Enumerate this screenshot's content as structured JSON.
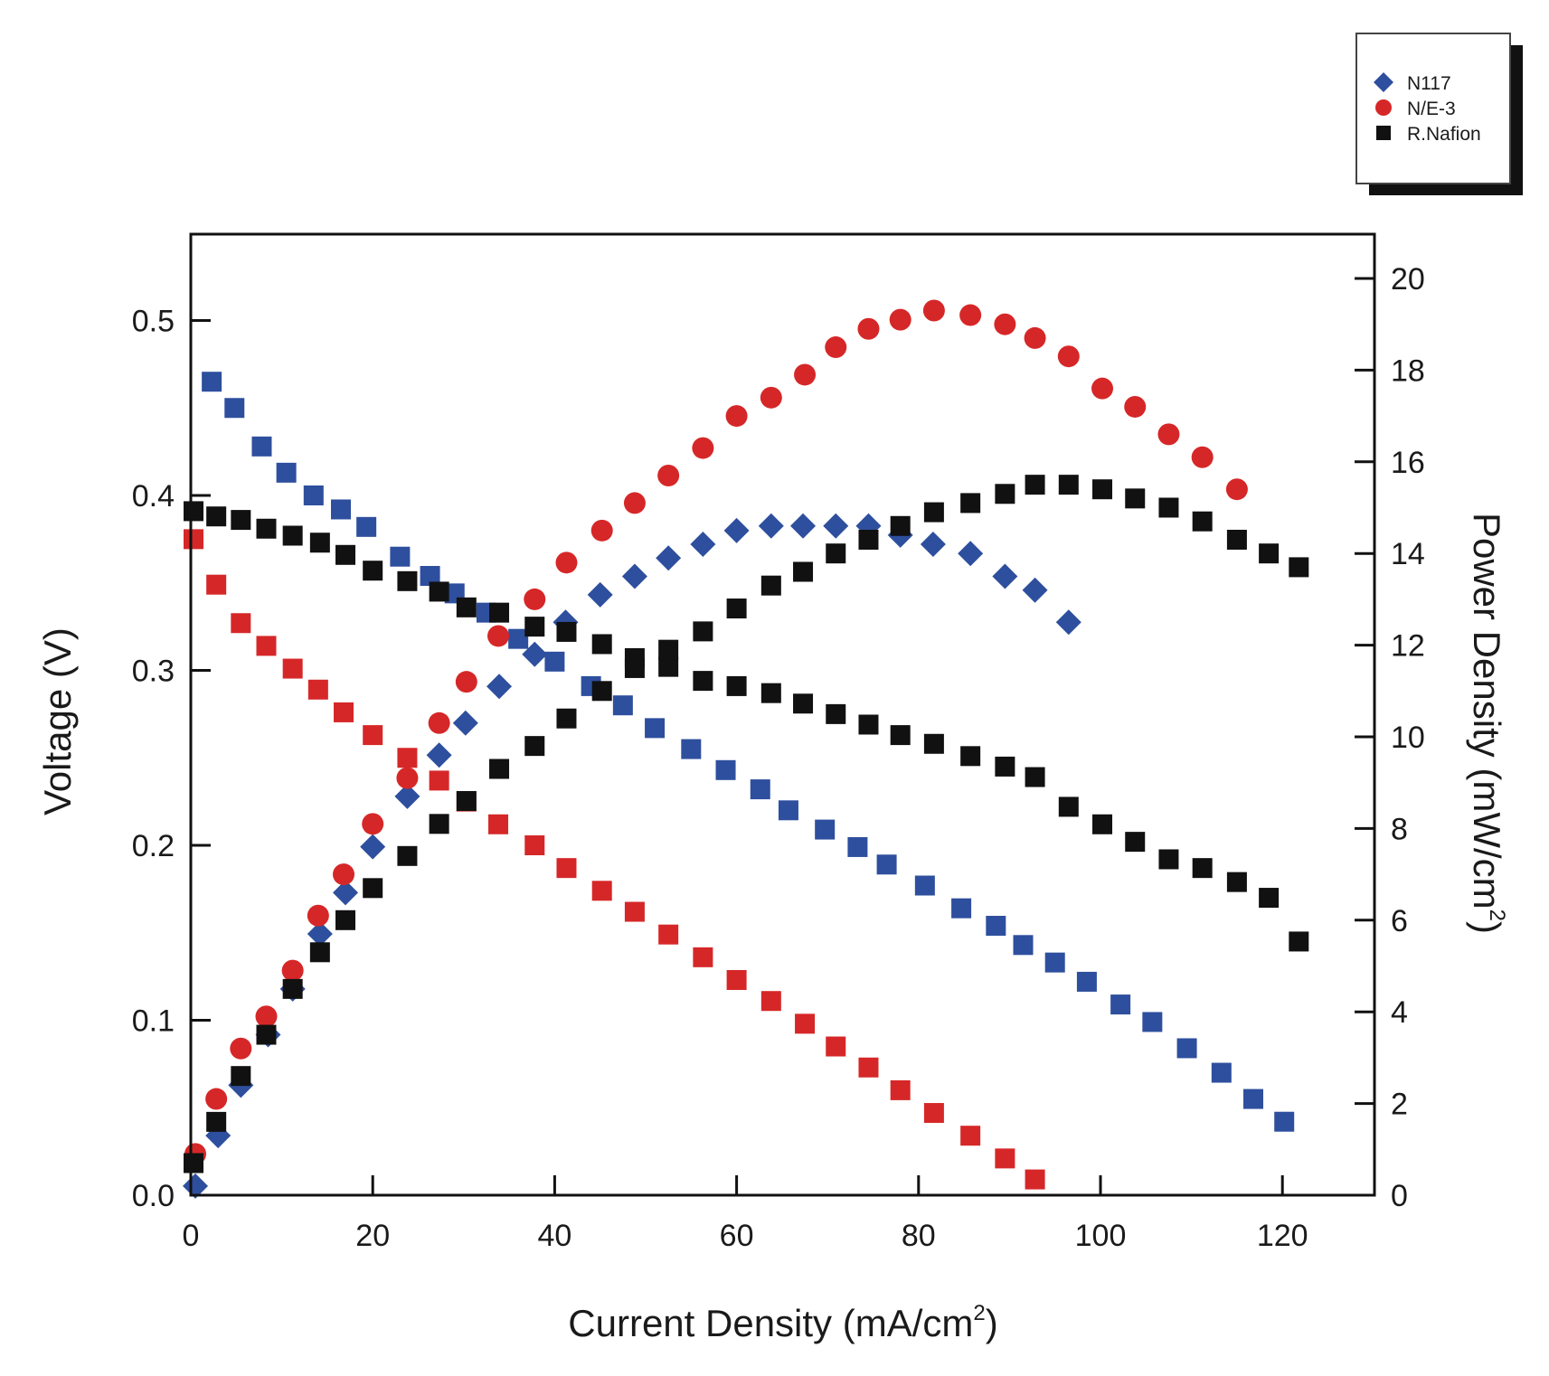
{
  "chart_data": {
    "type": "scatter",
    "xlabel": "Current Density (mA/cm",
    "xlabel_sup": "2",
    "xlabel_end": ")",
    "ylabel": "Voltage (V)",
    "y2label": "Power Density (mW/cm",
    "y2label_sup": "2",
    "y2label_end": ")",
    "xlim": [
      0,
      130
    ],
    "ylim": [
      0,
      0.55
    ],
    "y2lim": [
      0,
      21
    ],
    "xticks": [
      0,
      20,
      40,
      60,
      80,
      100,
      120
    ],
    "yticks": [
      0.0,
      0.1,
      0.2,
      0.3,
      0.4,
      0.5
    ],
    "ytick_labels": [
      "0.0",
      "0.1",
      "0.2",
      "0.3",
      "0.4",
      "0.5"
    ],
    "y2ticks": [
      0,
      2,
      4,
      6,
      8,
      10,
      12,
      14,
      16,
      18,
      20
    ],
    "legend": [
      {
        "name": "N117",
        "color": "#2e4f9e",
        "marker": "diamond"
      },
      {
        "name": "N/E-3",
        "color": "#d62728",
        "marker": "circle"
      },
      {
        "name": "R.Nafion",
        "color": "#111111",
        "marker": "square"
      }
    ],
    "series": [
      {
        "name": "N117 voltage",
        "legend": "N117",
        "axis": "left",
        "marker": "square",
        "color": "#2e4f9e",
        "x": [
          2.3,
          4.8,
          7.8,
          10.5,
          13.5,
          16.5,
          19.3,
          23.0,
          26.3,
          29.0,
          32.5,
          36.0,
          40.0,
          44.0,
          47.5,
          51.0,
          55.0,
          58.8,
          62.6,
          65.7,
          69.7,
          73.3,
          76.5,
          80.7,
          84.7,
          88.5,
          91.5,
          95.0,
          98.5,
          102.2,
          105.7,
          109.5,
          113.3,
          116.8,
          120.2
        ],
        "y": [
          0.465,
          0.45,
          0.428,
          0.413,
          0.4,
          0.392,
          0.382,
          0.365,
          0.354,
          0.344,
          0.333,
          0.318,
          0.305,
          0.291,
          0.28,
          0.267,
          0.255,
          0.243,
          0.232,
          0.22,
          0.209,
          0.199,
          0.189,
          0.177,
          0.164,
          0.154,
          0.143,
          0.133,
          0.122,
          0.109,
          0.099,
          0.084,
          0.07,
          0.055,
          0.042
        ]
      },
      {
        "name": "N117 power",
        "legend": "N117",
        "axis": "right",
        "marker": "diamond",
        "color": "#2e4f9e",
        "x": [
          0.5,
          3.0,
          5.5,
          8.5,
          11.2,
          14.2,
          17.0,
          20.0,
          23.8,
          27.3,
          30.2,
          33.9,
          37.8,
          41.2,
          45.0,
          48.8,
          52.5,
          56.3,
          60.0,
          63.8,
          67.3,
          70.9,
          74.5,
          78.0,
          81.6,
          85.7,
          89.5,
          92.8,
          96.5
        ],
        "y": [
          0.2,
          1.3,
          2.4,
          3.5,
          4.5,
          5.7,
          6.6,
          7.6,
          8.7,
          9.6,
          10.3,
          11.1,
          11.8,
          12.5,
          13.1,
          13.5,
          13.9,
          14.2,
          14.5,
          14.6,
          14.6,
          14.6,
          14.6,
          14.4,
          14.2,
          14.0,
          13.5,
          13.2,
          12.5
        ]
      },
      {
        "name": "N/E-3 voltage",
        "legend": "N/E-3",
        "axis": "left",
        "marker": "square",
        "color": "#d62728",
        "x": [
          0.3,
          2.8,
          5.5,
          8.3,
          11.2,
          14.0,
          16.8,
          20.0,
          23.8,
          27.3,
          30.3,
          33.8,
          37.8,
          41.3,
          45.2,
          48.8,
          52.5,
          56.3,
          60.0,
          63.8,
          67.5,
          70.9,
          74.5,
          78.0,
          81.7,
          85.7,
          89.5,
          92.8
        ],
        "y": [
          0.375,
          0.349,
          0.327,
          0.314,
          0.301,
          0.289,
          0.276,
          0.263,
          0.25,
          0.237,
          0.225,
          0.212,
          0.2,
          0.187,
          0.174,
          0.162,
          0.149,
          0.136,
          0.123,
          0.111,
          0.098,
          0.085,
          0.073,
          0.06,
          0.047,
          0.034,
          0.021,
          0.009
        ]
      },
      {
        "name": "N/E-3 power",
        "legend": "N/E-3",
        "axis": "right",
        "marker": "circle",
        "color": "#d62728",
        "x": [
          0.5,
          2.8,
          5.5,
          8.3,
          11.2,
          14.0,
          16.8,
          20.0,
          23.8,
          27.3,
          30.3,
          33.8,
          37.8,
          41.3,
          45.2,
          48.8,
          52.5,
          56.3,
          60.0,
          63.8,
          67.5,
          70.9,
          74.5,
          78.0,
          81.7,
          85.7,
          89.5,
          92.8,
          96.5,
          100.2,
          103.8,
          107.5,
          111.2,
          115.0
        ],
        "y": [
          0.9,
          2.1,
          3.2,
          3.9,
          4.9,
          6.1,
          7.0,
          8.1,
          9.1,
          10.3,
          11.2,
          12.2,
          13.0,
          13.8,
          14.5,
          15.1,
          15.7,
          16.3,
          17.0,
          17.4,
          17.9,
          18.5,
          18.9,
          19.1,
          19.3,
          19.2,
          19.0,
          18.7,
          18.3,
          17.6,
          17.2,
          16.6,
          16.1,
          15.4
        ]
      },
      {
        "name": "R.Nafion voltage",
        "legend": "R.Nafion",
        "axis": "left",
        "marker": "square",
        "color": "#111111",
        "x": [
          0.3,
          2.8,
          5.5,
          8.3,
          11.2,
          14.2,
          17.0,
          20.0,
          23.8,
          27.3,
          30.3,
          33.9,
          37.8,
          41.3,
          45.2,
          48.8,
          52.5,
          56.3,
          60.0,
          63.8,
          67.3,
          70.9,
          74.5,
          78.0,
          81.7,
          85.7,
          89.5,
          92.8,
          96.5,
          100.2,
          103.8,
          107.5,
          111.2,
          115.0,
          118.5,
          121.8
        ],
        "y": [
          0.391,
          0.388,
          0.386,
          0.381,
          0.377,
          0.373,
          0.366,
          0.357,
          0.351,
          0.345,
          0.336,
          0.333,
          0.325,
          0.322,
          0.315,
          0.307,
          0.302,
          0.294,
          0.291,
          0.287,
          0.281,
          0.275,
          0.269,
          0.263,
          0.258,
          0.251,
          0.245,
          0.239,
          0.222,
          0.212,
          0.202,
          0.192,
          0.187,
          0.179,
          0.17,
          0.145
        ]
      },
      {
        "name": "R.Nafion power",
        "legend": "R.Nafion",
        "axis": "right",
        "marker": "square",
        "color": "#111111",
        "x": [
          0.3,
          2.8,
          5.5,
          8.3,
          11.2,
          14.2,
          17.0,
          20.0,
          23.8,
          27.3,
          30.3,
          33.9,
          37.8,
          41.3,
          45.2,
          48.8,
          52.5,
          56.3,
          60.0,
          63.8,
          67.3,
          70.9,
          74.5,
          78.0,
          81.7,
          85.7,
          89.5,
          92.8,
          96.5,
          100.2,
          103.8,
          107.5,
          111.2,
          115.0,
          118.5,
          121.8
        ],
        "y": [
          0.7,
          1.6,
          2.6,
          3.5,
          4.5,
          5.3,
          6.0,
          6.7,
          7.4,
          8.1,
          8.6,
          9.3,
          9.8,
          10.4,
          11.0,
          11.5,
          11.9,
          12.3,
          12.8,
          13.3,
          13.6,
          14.0,
          14.3,
          14.6,
          14.9,
          15.1,
          15.3,
          15.5,
          15.5,
          15.4,
          15.2,
          15.0,
          14.7,
          14.3,
          14.0,
          13.7
        ]
      }
    ]
  }
}
